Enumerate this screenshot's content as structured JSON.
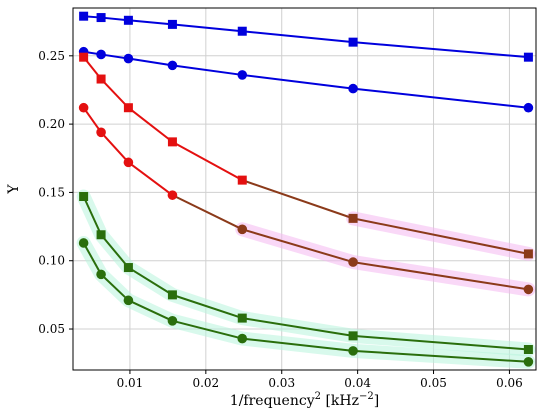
{
  "chart_data": {
    "type": "line",
    "title": "",
    "xlabel": {
      "base": "1/frequency",
      "sup1": "2",
      "unit": " [kHz",
      "sup2": "−2",
      "close": "]"
    },
    "ylabel": "Y",
    "xlim": [
      0.0025,
      0.0635
    ],
    "ylim": [
      0.02,
      0.285
    ],
    "xticks": [
      0.01,
      0.02,
      0.03,
      0.04,
      0.05,
      0.06
    ],
    "xtick_labels": [
      "0.01",
      "0.02",
      "0.03",
      "0.04",
      "0.05",
      "0.06"
    ],
    "yticks": [
      0.05,
      0.1,
      0.15,
      0.2,
      0.25
    ],
    "ytick_labels": [
      "0.05",
      "0.10",
      "0.15",
      "0.20",
      "0.25"
    ],
    "grid": true,
    "x": [
      0.0039,
      0.0062,
      0.0098,
      0.0156,
      0.0248,
      0.0394,
      0.0625
    ],
    "series": [
      {
        "marker": "square",
        "color": "#0000dd",
        "segment_colors": [
          "#0000dd",
          "#0000dd",
          "#0000dd",
          "#0000dd",
          "#0000dd",
          "#0000dd"
        ],
        "point_colors": [
          "#0000dd",
          "#0000dd",
          "#0000dd",
          "#0000dd",
          "#0000dd",
          "#0000dd",
          "#0000dd"
        ],
        "values": [
          0.279,
          0.278,
          0.276,
          0.273,
          0.268,
          0.26,
          0.249
        ]
      },
      {
        "marker": "circle",
        "color": "#0000dd",
        "segment_colors": [
          "#0000dd",
          "#0000dd",
          "#0000dd",
          "#0000dd",
          "#0000dd",
          "#0000dd"
        ],
        "point_colors": [
          "#0000dd",
          "#0000dd",
          "#0000dd",
          "#0000dd",
          "#0000dd",
          "#0000dd",
          "#0000dd"
        ],
        "values": [
          0.253,
          0.251,
          0.248,
          0.243,
          0.236,
          0.226,
          0.212
        ]
      },
      {
        "marker": "square",
        "color": "#e41010",
        "segment_colors": [
          "#e41010",
          "#e41010",
          "#e41010",
          "#e41010",
          "#8b3a1a",
          "#8b3a1a"
        ],
        "point_colors": [
          "#e41010",
          "#e41010",
          "#e41010",
          "#e41010",
          "#e41010",
          "#8b3a1a",
          "#8b3a1a"
        ],
        "highlight": [
          false,
          false,
          false,
          false,
          false,
          true,
          true
        ],
        "values": [
          0.249,
          0.233,
          0.212,
          0.187,
          0.159,
          0.131,
          0.105
        ]
      },
      {
        "marker": "circle",
        "color": "#e41010",
        "segment_colors": [
          "#e41010",
          "#e41010",
          "#e41010",
          "#8b3a1a",
          "#8b3a1a",
          "#8b3a1a"
        ],
        "point_colors": [
          "#e41010",
          "#e41010",
          "#e41010",
          "#e41010",
          "#8b3a1a",
          "#8b3a1a",
          "#8b3a1a"
        ],
        "highlight": [
          false,
          false,
          false,
          false,
          true,
          true,
          true
        ],
        "values": [
          0.212,
          0.194,
          0.172,
          0.148,
          0.123,
          0.099,
          0.079
        ]
      },
      {
        "marker": "square",
        "color": "#2a6e0c",
        "segment_colors": [
          "#2a6e0c",
          "#2a6e0c",
          "#2a6e0c",
          "#2a6e0c",
          "#2a6e0c",
          "#2a6e0c"
        ],
        "point_colors": [
          "#2a6e0c",
          "#2a6e0c",
          "#2a6e0c",
          "#2a6e0c",
          "#2a6e0c",
          "#2a6e0c",
          "#2a6e0c"
        ],
        "values": [
          0.147,
          0.119,
          0.095,
          0.075,
          0.058,
          0.045,
          0.035
        ]
      },
      {
        "marker": "circle",
        "color": "#2a6e0c",
        "segment_colors": [
          "#2a6e0c",
          "#2a6e0c",
          "#2a6e0c",
          "#2a6e0c",
          "#2a6e0c",
          "#2a6e0c"
        ],
        "point_colors": [
          "#2a6e0c",
          "#2a6e0c",
          "#2a6e0c",
          "#2a6e0c",
          "#2a6e0c",
          "#2a6e0c",
          "#2a6e0c"
        ],
        "values": [
          0.113,
          0.09,
          0.071,
          0.056,
          0.043,
          0.034,
          0.026
        ]
      }
    ],
    "highlight_color": "#f4b8f0",
    "green_glow_color": "#b8f4dc"
  }
}
